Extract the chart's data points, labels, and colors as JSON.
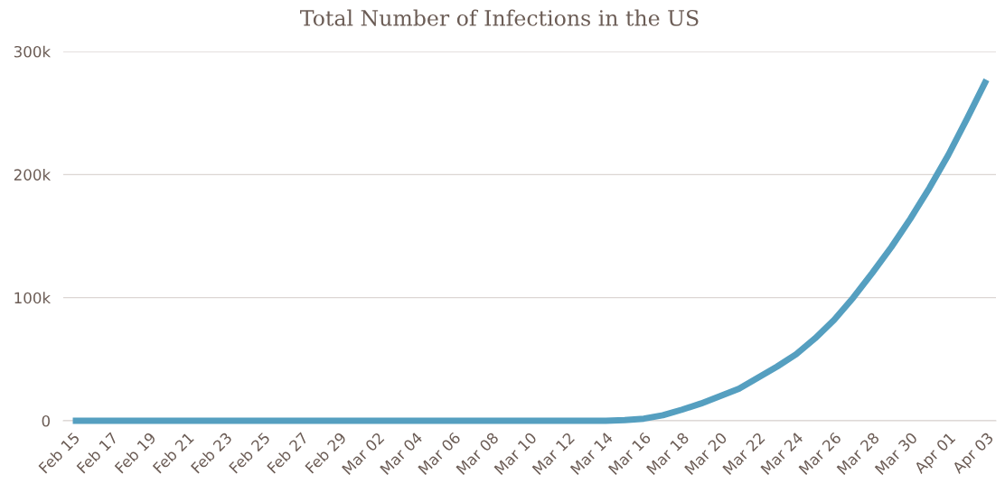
{
  "chart_data": {
    "type": "line",
    "title": "Total Number of Infections in the US",
    "categories": [
      "Feb 15",
      null,
      "Feb 17",
      null,
      "Feb 19",
      null,
      "Feb 21",
      null,
      "Feb 23",
      null,
      "Feb 25",
      null,
      "Feb 27",
      null,
      "Feb 29",
      null,
      "Mar 02",
      null,
      "Mar 04",
      null,
      "Mar 06",
      null,
      "Mar 08",
      null,
      "Mar 10",
      null,
      "Mar 12",
      null,
      "Mar 14",
      null,
      "Mar 16",
      null,
      "Mar 18",
      null,
      "Mar 20",
      null,
      "Mar 22",
      null,
      "Mar 24",
      null,
      "Mar 26",
      null,
      "Mar 28",
      null,
      "Mar 30",
      null,
      "Apr 01",
      null,
      "Apr 03"
    ],
    "series": [
      {
        "color": "#559fc0",
        "values": [
          0,
          0,
          0,
          0,
          0,
          0,
          0,
          0,
          0,
          0,
          0,
          0,
          0,
          0,
          0,
          0,
          0,
          0,
          0,
          0,
          0,
          0,
          0,
          0,
          0,
          0,
          0,
          0,
          0,
          500,
          1700,
          4500,
          9000,
          14000,
          20000,
          26000,
          35000,
          44000,
          54000,
          67000,
          82000,
          100000,
          120000,
          141000,
          164000,
          189000,
          216000,
          246000,
          277000
        ]
      }
    ],
    "ylim": [
      0,
      300000
    ],
    "yticks": [
      {
        "value": 0,
        "label": "0"
      },
      {
        "value": 100000,
        "label": "100k"
      },
      {
        "value": 200000,
        "label": "200k"
      },
      {
        "value": 300000,
        "label": "300k"
      }
    ],
    "grid": "y",
    "legend": false,
    "marker": "none",
    "line_style": "solid"
  }
}
